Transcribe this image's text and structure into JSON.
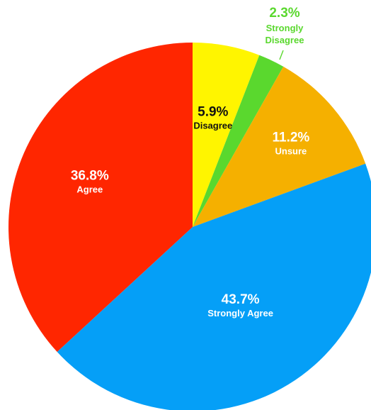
{
  "chart_data": {
    "type": "pie",
    "title": "",
    "start_angle_deg": 0,
    "direction": "clockwise",
    "slices": [
      {
        "label": "Disagree",
        "value": 5.9,
        "value_label": "5.9%",
        "color": "#FFF500",
        "text_color": "#111111"
      },
      {
        "label": "Strongly Disagree",
        "value": 2.3,
        "value_label": "2.3%",
        "color": "#5AD82E",
        "text_color": "#5AD82E",
        "label_lines": [
          "Strongly",
          "Disagree"
        ],
        "label_outside": true
      },
      {
        "label": "Unsure",
        "value": 11.2,
        "value_label": "11.2%",
        "color": "#F5B000",
        "text_color": "#ffffff"
      },
      {
        "label": "Strongly Agree",
        "value": 43.7,
        "value_label": "43.7%",
        "color": "#059FF7",
        "text_color": "#ffffff"
      },
      {
        "label": "Agree",
        "value": 36.8,
        "value_label": "36.8%",
        "color": "#FF2600",
        "text_color": "#ffffff"
      }
    ]
  }
}
